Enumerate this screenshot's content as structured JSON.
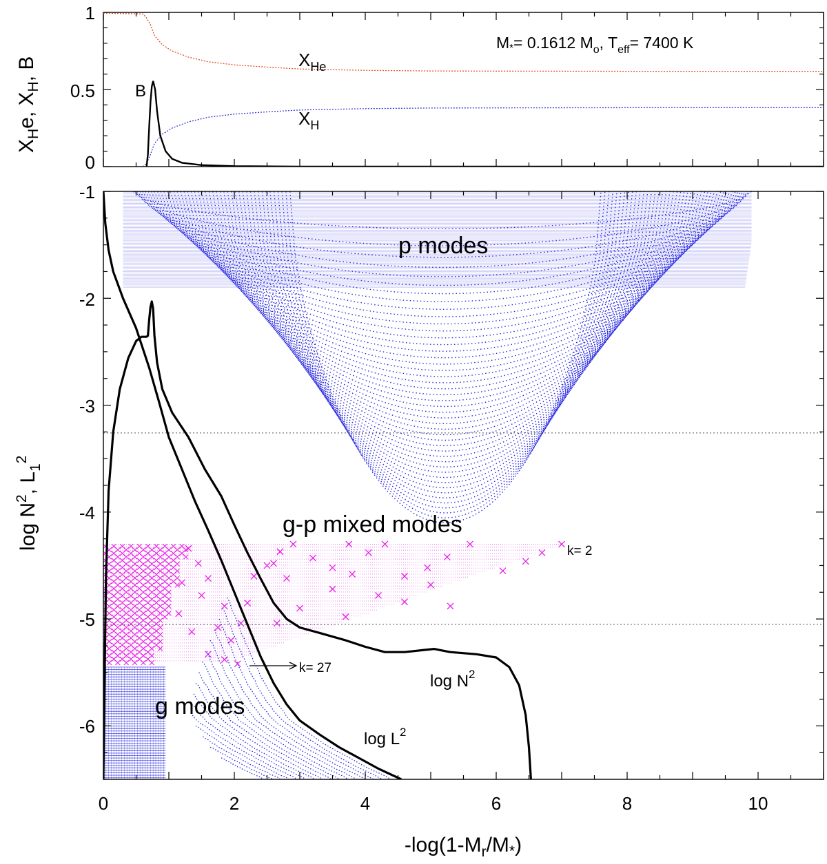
{
  "chart_data": [
    {
      "id": "abundance",
      "type": "line",
      "xlim": [
        0,
        11
      ],
      "ylim": [
        0,
        1
      ],
      "yticks": [
        "0",
        "0.5",
        "1"
      ],
      "ylabel": {
        "base1": "X",
        "sub1": "H",
        "mid": "e, X",
        "sub2": "H",
        "end": ", B"
      },
      "annotation": {
        "m": "M",
        "m_sub": "*",
        "eq1": "= 0.1612 M",
        "m_sub2": "o",
        "t_part": ", T",
        "t_sub": "eff",
        "eq2": "= 7400 K"
      },
      "series": [
        {
          "name": "XHe",
          "label": "X",
          "label_sub": "He",
          "color": "#e2502a",
          "style": "dotted",
          "points": [
            [
              0,
              0.995
            ],
            [
              0.6,
              0.99
            ],
            [
              0.65,
              0.97
            ],
            [
              0.72,
              0.92
            ],
            [
              0.78,
              0.85
            ],
            [
              0.9,
              0.79
            ],
            [
              1.05,
              0.75
            ],
            [
              1.3,
              0.71
            ],
            [
              1.6,
              0.68
            ],
            [
              2.0,
              0.66
            ],
            [
              2.5,
              0.645
            ],
            [
              3,
              0.633
            ],
            [
              4,
              0.624
            ],
            [
              5,
              0.62
            ],
            [
              6,
              0.619
            ],
            [
              8,
              0.618
            ],
            [
              11,
              0.618
            ]
          ]
        },
        {
          "name": "XH",
          "label": "X",
          "label_sub": "H",
          "color": "#3a3ad8",
          "style": "dotted",
          "points": [
            [
              0.6,
              0
            ],
            [
              0.66,
              0.02
            ],
            [
              0.72,
              0.08
            ],
            [
              0.78,
              0.15
            ],
            [
              0.9,
              0.21
            ],
            [
              1.05,
              0.25
            ],
            [
              1.3,
              0.29
            ],
            [
              1.6,
              0.32
            ],
            [
              2.0,
              0.34
            ],
            [
              2.5,
              0.355
            ],
            [
              3,
              0.367
            ],
            [
              4,
              0.376
            ],
            [
              5,
              0.38
            ],
            [
              6,
              0.381
            ],
            [
              8,
              0.382
            ],
            [
              11,
              0.382
            ]
          ]
        },
        {
          "name": "B",
          "label": "B",
          "color": "#000000",
          "style": "solid",
          "points": [
            [
              0.66,
              0
            ],
            [
              0.68,
              0.08
            ],
            [
              0.7,
              0.26
            ],
            [
              0.72,
              0.42
            ],
            [
              0.74,
              0.52
            ],
            [
              0.76,
              0.555
            ],
            [
              0.79,
              0.5
            ],
            [
              0.82,
              0.36
            ],
            [
              0.87,
              0.2
            ],
            [
              0.95,
              0.1
            ],
            [
              1.05,
              0.05
            ],
            [
              1.2,
              0.025
            ],
            [
              1.5,
              0.01
            ],
            [
              2.0,
              0.003
            ],
            [
              3,
              0
            ],
            [
              11,
              0
            ]
          ]
        }
      ]
    },
    {
      "id": "propagation",
      "type": "line",
      "xlim": [
        0,
        11
      ],
      "ylim": [
        -6.5,
        -1
      ],
      "xticks": [
        "0",
        "2",
        "4",
        "6",
        "8",
        "10"
      ],
      "yticks": [
        "-1",
        "-2",
        "-3",
        "-4",
        "-5",
        "-6"
      ],
      "xlabel": {
        "pre": "-log(1-M",
        "sub": "r",
        "mid": "/M",
        "sub2": "*",
        "post": ")"
      },
      "ylabel": {
        "t1": "log N",
        "sup1": "2",
        "t2": ", L",
        "sub": "1",
        "sup2": "2"
      },
      "hlines": [
        -3.26,
        -5.05
      ],
      "series": [
        {
          "name": "log N2",
          "label": "log N",
          "label_sup": "2",
          "color": "#000000",
          "points": [
            [
              0.0,
              -6.5
            ],
            [
              0.02,
              -5.5
            ],
            [
              0.04,
              -4.6
            ],
            [
              0.08,
              -3.8
            ],
            [
              0.15,
              -3.25
            ],
            [
              0.25,
              -2.85
            ],
            [
              0.38,
              -2.56
            ],
            [
              0.5,
              -2.4
            ],
            [
              0.58,
              -2.36
            ],
            [
              0.66,
              -2.36
            ],
            [
              0.68,
              -2.35
            ],
            [
              0.7,
              -2.2
            ],
            [
              0.72,
              -2.08
            ],
            [
              0.74,
              -2.03
            ],
            [
              0.76,
              -2.1
            ],
            [
              0.78,
              -2.35
            ],
            [
              0.82,
              -2.6
            ],
            [
              0.9,
              -2.85
            ],
            [
              1.05,
              -3.07
            ],
            [
              1.3,
              -3.3
            ],
            [
              1.55,
              -3.6
            ],
            [
              1.8,
              -3.85
            ],
            [
              2.0,
              -4.12
            ],
            [
              2.2,
              -4.38
            ],
            [
              2.4,
              -4.62
            ],
            [
              2.6,
              -4.85
            ],
            [
              2.8,
              -5.0
            ],
            [
              3.0,
              -5.08
            ],
            [
              3.3,
              -5.13
            ],
            [
              3.7,
              -5.2
            ],
            [
              4.0,
              -5.26
            ],
            [
              4.3,
              -5.31
            ],
            [
              4.6,
              -5.31
            ],
            [
              4.9,
              -5.29
            ],
            [
              5.05,
              -5.28
            ],
            [
              5.3,
              -5.31
            ],
            [
              5.7,
              -5.33
            ],
            [
              6.0,
              -5.36
            ],
            [
              6.2,
              -5.45
            ],
            [
              6.35,
              -5.62
            ],
            [
              6.45,
              -5.9
            ],
            [
              6.5,
              -6.2
            ],
            [
              6.53,
              -6.5
            ]
          ]
        },
        {
          "name": "log L2",
          "label": "log L",
          "label_sup": "2",
          "color": "#000000",
          "points": [
            [
              0.0,
              -1.0
            ],
            [
              0.03,
              -1.3
            ],
            [
              0.08,
              -1.55
            ],
            [
              0.15,
              -1.75
            ],
            [
              0.3,
              -2.0
            ],
            [
              0.5,
              -2.28
            ],
            [
              0.7,
              -2.65
            ],
            [
              0.85,
              -2.97
            ],
            [
              1.0,
              -3.3
            ],
            [
              1.2,
              -3.6
            ],
            [
              1.4,
              -3.9
            ],
            [
              1.6,
              -4.17
            ],
            [
              1.8,
              -4.45
            ],
            [
              2.0,
              -4.75
            ],
            [
              2.2,
              -5.05
            ],
            [
              2.4,
              -5.35
            ],
            [
              2.6,
              -5.6
            ],
            [
              2.8,
              -5.8
            ],
            [
              3.0,
              -5.95
            ],
            [
              3.3,
              -6.08
            ],
            [
              3.6,
              -6.2
            ],
            [
              3.9,
              -6.3
            ],
            [
              4.2,
              -6.4
            ],
            [
              4.55,
              -6.5
            ]
          ]
        }
      ],
      "labels": {
        "p_modes": "p modes",
        "gp_mixed": "g-p mixed modes",
        "g_modes": "g modes",
        "k2": "k= 2",
        "k27": "k= 27"
      }
    }
  ]
}
